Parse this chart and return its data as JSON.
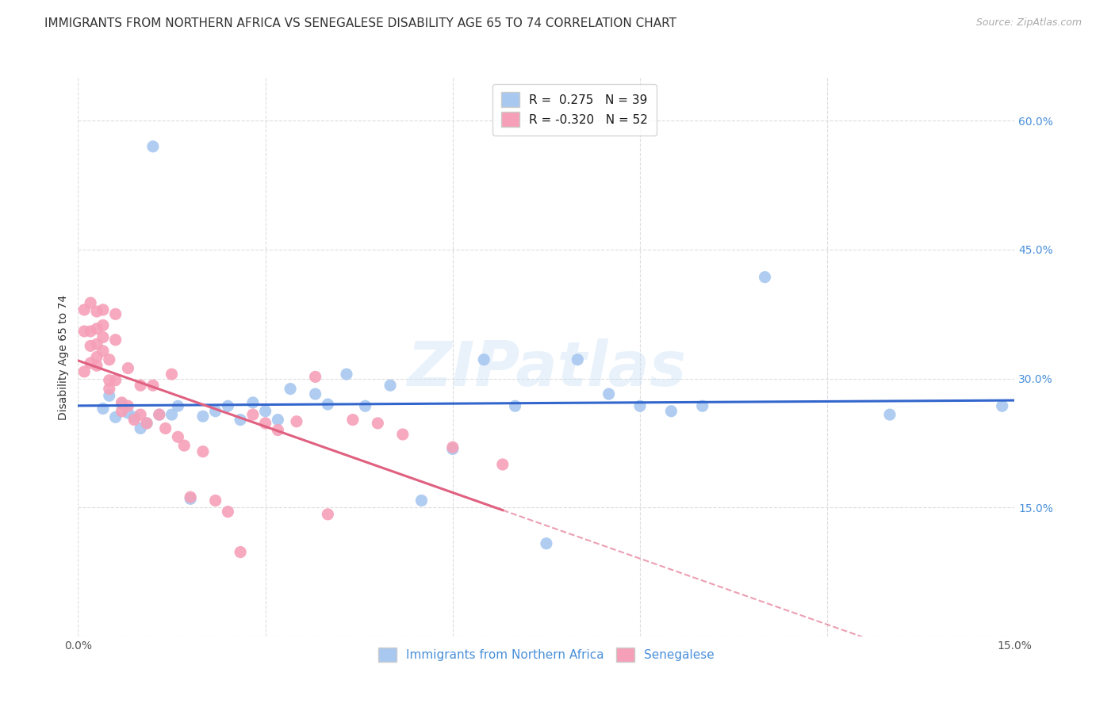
{
  "title": "IMMIGRANTS FROM NORTHERN AFRICA VS SENEGALESE DISABILITY AGE 65 TO 74 CORRELATION CHART",
  "source": "Source: ZipAtlas.com",
  "ylabel": "Disability Age 65 to 74",
  "xlim": [
    0.0,
    0.15
  ],
  "ylim": [
    0.0,
    0.65
  ],
  "blue_R": 0.275,
  "blue_N": 39,
  "pink_R": -0.32,
  "pink_N": 52,
  "blue_color": "#a8c8f0",
  "pink_color": "#f5a0b8",
  "blue_line_color": "#3366cc",
  "pink_line_color": "#e06080",
  "watermark": "ZIPatlas",
  "blue_points_x": [
    0.004,
    0.005,
    0.006,
    0.007,
    0.008,
    0.009,
    0.01,
    0.011,
    0.012,
    0.013,
    0.015,
    0.016,
    0.018,
    0.02,
    0.022,
    0.024,
    0.026,
    0.028,
    0.03,
    0.032,
    0.034,
    0.038,
    0.04,
    0.043,
    0.046,
    0.05,
    0.055,
    0.06,
    0.065,
    0.07,
    0.075,
    0.08,
    0.085,
    0.09,
    0.095,
    0.1,
    0.11,
    0.13,
    0.148
  ],
  "blue_points_y": [
    0.265,
    0.28,
    0.255,
    0.27,
    0.26,
    0.255,
    0.242,
    0.248,
    0.57,
    0.258,
    0.258,
    0.268,
    0.16,
    0.256,
    0.262,
    0.268,
    0.252,
    0.272,
    0.262,
    0.252,
    0.288,
    0.282,
    0.27,
    0.305,
    0.268,
    0.292,
    0.158,
    0.218,
    0.322,
    0.268,
    0.108,
    0.322,
    0.282,
    0.268,
    0.262,
    0.268,
    0.418,
    0.258,
    0.268
  ],
  "pink_points_x": [
    0.001,
    0.001,
    0.001,
    0.002,
    0.002,
    0.002,
    0.002,
    0.003,
    0.003,
    0.003,
    0.003,
    0.003,
    0.004,
    0.004,
    0.004,
    0.004,
    0.005,
    0.005,
    0.005,
    0.006,
    0.006,
    0.006,
    0.007,
    0.007,
    0.008,
    0.008,
    0.009,
    0.01,
    0.01,
    0.011,
    0.012,
    0.013,
    0.014,
    0.015,
    0.016,
    0.017,
    0.018,
    0.02,
    0.022,
    0.024,
    0.026,
    0.028,
    0.03,
    0.032,
    0.035,
    0.038,
    0.04,
    0.044,
    0.048,
    0.052,
    0.06,
    0.068
  ],
  "pink_points_y": [
    0.38,
    0.355,
    0.308,
    0.388,
    0.355,
    0.338,
    0.318,
    0.378,
    0.358,
    0.34,
    0.325,
    0.315,
    0.38,
    0.362,
    0.348,
    0.332,
    0.322,
    0.298,
    0.288,
    0.375,
    0.345,
    0.298,
    0.272,
    0.262,
    0.312,
    0.268,
    0.252,
    0.292,
    0.258,
    0.248,
    0.292,
    0.258,
    0.242,
    0.305,
    0.232,
    0.222,
    0.162,
    0.215,
    0.158,
    0.145,
    0.098,
    0.258,
    0.248,
    0.24,
    0.25,
    0.302,
    0.142,
    0.252,
    0.248,
    0.235,
    0.22,
    0.2
  ],
  "grid_color": "#dddddd",
  "background_color": "#ffffff",
  "title_fontsize": 11,
  "axis_label_fontsize": 10,
  "tick_fontsize": 10,
  "legend_fontsize": 11
}
